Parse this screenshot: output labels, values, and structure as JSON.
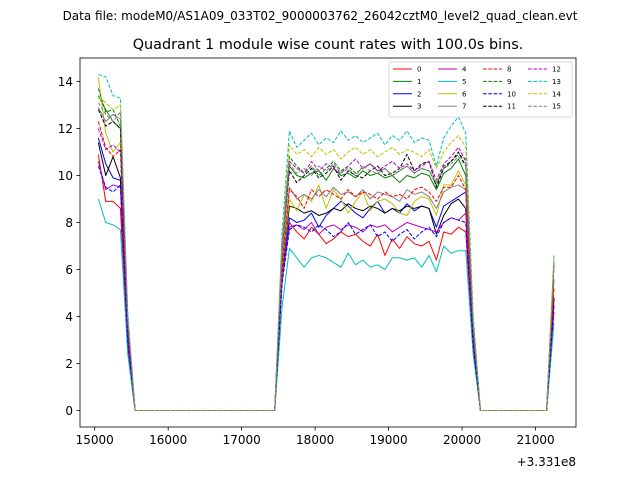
{
  "figure": {
    "suptitle": "Data file: modeM0/AS1A09_033T02_9000003762_26042cztM0_level2_quad_clean.evt"
  },
  "chart_data": {
    "type": "line",
    "title": "Quadrant 1 module wise count rates with 100.0s bins.",
    "xlabel": "",
    "ylabel": "",
    "x_offset_label": "+3.331e8",
    "xlim": [
      14800,
      21550
    ],
    "ylim": [
      -0.7,
      15.0
    ],
    "xticks": [
      15000,
      16000,
      17000,
      18000,
      19000,
      20000,
      21000
    ],
    "yticks": [
      0,
      2,
      4,
      6,
      8,
      10,
      12,
      14
    ],
    "grid": false,
    "legend_position": "top-right",
    "legend_columns": 4,
    "x": [
      15050,
      15150,
      15250,
      15350,
      15450,
      15550,
      15650,
      15750,
      15850,
      15950,
      16050,
      16150,
      16250,
      16350,
      16450,
      16550,
      16650,
      16750,
      16850,
      16950,
      17050,
      17150,
      17250,
      17350,
      17450,
      17550,
      17650,
      17750,
      17850,
      17950,
      18050,
      18150,
      18250,
      18350,
      18450,
      18550,
      18650,
      18750,
      18850,
      18950,
      19050,
      19150,
      19250,
      19350,
      19450,
      19550,
      19650,
      19750,
      19850,
      19950,
      20050,
      20150,
      20250,
      20350,
      20450,
      20550,
      20650,
      20750,
      20850,
      20950,
      21050,
      21150,
      21250
    ],
    "series": [
      {
        "name": "0",
        "color": "#ff0000",
        "dash": "solid",
        "values": [
          10.9,
          8.9,
          8.9,
          8.6,
          2.6,
          0,
          0,
          0,
          0,
          0,
          0,
          0,
          0,
          0,
          0,
          0,
          0,
          0,
          0,
          0,
          0,
          0,
          0,
          0,
          0,
          5.7,
          8.0,
          7.6,
          7.3,
          7.8,
          7.5,
          7.1,
          7.3,
          7.6,
          7.4,
          7.5,
          7.2,
          7.0,
          7.5,
          6.6,
          7.3,
          6.9,
          7.4,
          7.1,
          7.0,
          7.2,
          6.4,
          7.6,
          7.5,
          7.8,
          7.6,
          2.7,
          0,
          0,
          0,
          0,
          0,
          0,
          0,
          0,
          0,
          0,
          4.2
        ]
      },
      {
        "name": "1",
        "color": "#008000",
        "dash": "solid",
        "values": [
          13.4,
          12.8,
          12.3,
          12.0,
          3.8,
          0,
          0,
          0,
          0,
          0,
          0,
          0,
          0,
          0,
          0,
          0,
          0,
          0,
          0,
          0,
          0,
          0,
          0,
          0,
          0,
          6.8,
          10.4,
          10.0,
          9.9,
          10.1,
          10.2,
          9.8,
          10.3,
          10.0,
          10.1,
          9.9,
          10.2,
          10.0,
          10.1,
          9.9,
          10.0,
          9.7,
          10.0,
          9.9,
          10.1,
          10.0,
          9.4,
          10.1,
          10.3,
          10.7,
          10.0,
          3.6,
          0,
          0,
          0,
          0,
          0,
          0,
          0,
          0,
          0,
          0,
          6.3
        ]
      },
      {
        "name": "2",
        "color": "#0000ff",
        "dash": "solid",
        "values": [
          11.6,
          10.5,
          9.9,
          9.8,
          3.0,
          0,
          0,
          0,
          0,
          0,
          0,
          0,
          0,
          0,
          0,
          0,
          0,
          0,
          0,
          0,
          0,
          0,
          0,
          0,
          0,
          5.5,
          8.2,
          8.0,
          8.1,
          8.4,
          7.8,
          8.3,
          8.6,
          8.9,
          8.7,
          8.4,
          8.2,
          8.6,
          8.9,
          8.4,
          8.6,
          8.4,
          8.8,
          8.5,
          8.7,
          8.6,
          7.8,
          8.7,
          8.9,
          9.1,
          9.3,
          3.0,
          0,
          0,
          0,
          0,
          0,
          0,
          0,
          0,
          0,
          0,
          4.8
        ]
      },
      {
        "name": "3",
        "color": "#000000",
        "dash": "solid",
        "values": [
          11.4,
          10.0,
          10.8,
          9.9,
          3.1,
          0,
          0,
          0,
          0,
          0,
          0,
          0,
          0,
          0,
          0,
          0,
          0,
          0,
          0,
          0,
          0,
          0,
          0,
          0,
          0,
          5.9,
          8.7,
          8.6,
          8.4,
          8.5,
          8.3,
          8.4,
          8.6,
          8.5,
          8.8,
          8.6,
          8.5,
          8.7,
          8.6,
          8.4,
          8.6,
          8.5,
          8.7,
          8.6,
          8.7,
          8.6,
          7.5,
          8.3,
          8.8,
          9.0,
          8.6,
          3.0,
          0,
          0,
          0,
          0,
          0,
          0,
          0,
          0,
          0,
          0,
          4.8
        ]
      },
      {
        "name": "4",
        "color": "#bf00bf",
        "dash": "solid",
        "values": [
          10.6,
          9.4,
          9.6,
          9.5,
          2.9,
          0,
          0,
          0,
          0,
          0,
          0,
          0,
          0,
          0,
          0,
          0,
          0,
          0,
          0,
          0,
          0,
          0,
          0,
          0,
          0,
          5.6,
          7.8,
          7.9,
          7.7,
          8.0,
          7.5,
          7.8,
          7.9,
          7.7,
          7.9,
          7.8,
          7.6,
          7.9,
          7.8,
          7.9,
          7.6,
          7.8,
          8.0,
          7.9,
          7.8,
          7.7,
          7.6,
          8.0,
          8.2,
          8.1,
          8.4,
          2.9,
          0,
          0,
          0,
          0,
          0,
          0,
          0,
          0,
          0,
          0,
          4.5
        ]
      },
      {
        "name": "5",
        "color": "#00bfbf",
        "dash": "solid",
        "values": [
          9.0,
          8.0,
          7.9,
          7.7,
          2.4,
          0,
          0,
          0,
          0,
          0,
          0,
          0,
          0,
          0,
          0,
          0,
          0,
          0,
          0,
          0,
          0,
          0,
          0,
          0,
          0,
          4.4,
          6.9,
          6.5,
          6.1,
          6.5,
          6.6,
          6.5,
          6.3,
          6.1,
          6.7,
          6.2,
          6.4,
          6.1,
          6.2,
          6.0,
          6.5,
          6.5,
          6.4,
          6.5,
          6.1,
          6.6,
          5.9,
          7.0,
          6.7,
          6.8,
          6.8,
          2.4,
          0,
          0,
          0,
          0,
          0,
          0,
          0,
          0,
          0,
          0,
          3.7
        ]
      },
      {
        "name": "6",
        "color": "#bfbf00",
        "dash": "solid",
        "values": [
          14.2,
          11.8,
          11.0,
          11.4,
          3.6,
          0,
          0,
          0,
          0,
          0,
          0,
          0,
          0,
          0,
          0,
          0,
          0,
          0,
          0,
          0,
          0,
          0,
          0,
          0,
          0,
          6.0,
          9.0,
          8.5,
          9.2,
          8.9,
          9.6,
          8.6,
          9.4,
          9.0,
          8.4,
          8.9,
          9.3,
          8.5,
          8.9,
          9.0,
          8.8,
          8.4,
          8.3,
          8.9,
          9.1,
          9.0,
          8.3,
          9.6,
          9.6,
          10.2,
          9.6,
          3.4,
          0,
          0,
          0,
          0,
          0,
          0,
          0,
          0,
          0,
          0,
          5.6
        ]
      },
      {
        "name": "7",
        "color": "#808080",
        "dash": "solid",
        "values": [
          12.9,
          12.3,
          12.6,
          12.4,
          3.7,
          0,
          0,
          0,
          0,
          0,
          0,
          0,
          0,
          0,
          0,
          0,
          0,
          0,
          0,
          0,
          0,
          0,
          0,
          0,
          0,
          6.3,
          9.5,
          9.0,
          9.2,
          9.0,
          9.4,
          9.1,
          9.5,
          9.2,
          9.3,
          9.1,
          9.4,
          9.0,
          9.3,
          9.2,
          9.1,
          8.9,
          9.4,
          9.2,
          9.3,
          9.1,
          8.6,
          9.3,
          9.5,
          9.6,
          9.4,
          3.3,
          0,
          0,
          0,
          0,
          0,
          0,
          0,
          0,
          0,
          0,
          5.6
        ]
      },
      {
        "name": "8",
        "color": "#ff0000",
        "dash": "dashed",
        "values": [
          12.3,
          11.2,
          10.8,
          11.1,
          3.4,
          0,
          0,
          0,
          0,
          0,
          0,
          0,
          0,
          0,
          0,
          0,
          0,
          0,
          0,
          0,
          0,
          0,
          0,
          0,
          0,
          6.0,
          9.4,
          9.1,
          8.6,
          9.4,
          9.1,
          9.4,
          9.2,
          9.0,
          9.4,
          9.1,
          9.3,
          9.2,
          9.0,
          9.3,
          9.1,
          9.2,
          9.0,
          9.4,
          9.5,
          9.3,
          8.9,
          9.5,
          9.5,
          10.0,
          9.4,
          3.3,
          0,
          0,
          0,
          0,
          0,
          0,
          0,
          0,
          0,
          0,
          5.2
        ]
      },
      {
        "name": "9",
        "color": "#008000",
        "dash": "dashed",
        "values": [
          13.7,
          12.7,
          12.8,
          12.1,
          3.8,
          0,
          0,
          0,
          0,
          0,
          0,
          0,
          0,
          0,
          0,
          0,
          0,
          0,
          0,
          0,
          0,
          0,
          0,
          0,
          0,
          7.1,
          10.8,
          10.4,
          10.1,
          10.4,
          10.0,
          10.3,
          10.6,
          10.2,
          10.4,
          10.1,
          10.3,
          10.5,
          10.2,
          10.3,
          10.0,
          10.2,
          10.4,
          10.1,
          10.3,
          10.2,
          9.6,
          10.4,
          10.6,
          10.9,
          10.7,
          3.7,
          0,
          0,
          0,
          0,
          0,
          0,
          0,
          0,
          0,
          0,
          6.4
        ]
      },
      {
        "name": "10",
        "color": "#0000ff",
        "dash": "dashed",
        "values": [
          10.4,
          9.5,
          9.3,
          9.6,
          2.9,
          0,
          0,
          0,
          0,
          0,
          0,
          0,
          0,
          0,
          0,
          0,
          0,
          0,
          0,
          0,
          0,
          0,
          0,
          0,
          0,
          5.4,
          7.7,
          7.9,
          7.8,
          7.6,
          7.9,
          7.7,
          7.4,
          7.6,
          8.0,
          7.5,
          7.7,
          7.9,
          7.4,
          7.6,
          7.2,
          7.5,
          7.7,
          7.3,
          7.6,
          7.8,
          7.4,
          8.0,
          8.2,
          8.1,
          8.0,
          2.8,
          0,
          0,
          0,
          0,
          0,
          0,
          0,
          0,
          0,
          0,
          4.5
        ]
      },
      {
        "name": "11",
        "color": "#000000",
        "dash": "dashed",
        "values": [
          12.8,
          12.1,
          12.3,
          12.0,
          3.6,
          0,
          0,
          0,
          0,
          0,
          0,
          0,
          0,
          0,
          0,
          0,
          0,
          0,
          0,
          0,
          0,
          0,
          0,
          0,
          0,
          6.8,
          10.2,
          9.7,
          10.0,
          10.3,
          9.9,
          10.1,
          10.4,
          9.8,
          10.2,
          10.0,
          9.9,
          10.2,
          10.4,
          10.0,
          10.1,
          10.3,
          10.9,
          10.2,
          10.5,
          10.6,
          9.5,
          10.3,
          10.6,
          11.0,
          10.4,
          3.6,
          0,
          0,
          0,
          0,
          0,
          0,
          0,
          0,
          0,
          0,
          6.2
        ]
      },
      {
        "name": "12",
        "color": "#bf00bf",
        "dash": "dashed",
        "values": [
          12.0,
          11.1,
          11.3,
          11.0,
          3.5,
          0,
          0,
          0,
          0,
          0,
          0,
          0,
          0,
          0,
          0,
          0,
          0,
          0,
          0,
          0,
          0,
          0,
          0,
          0,
          0,
          6.8,
          10.6,
          10.3,
          10.1,
          10.6,
          10.2,
          10.5,
          10.3,
          10.1,
          10.4,
          10.7,
          10.3,
          10.5,
          10.2,
          10.4,
          10.6,
          10.3,
          10.5,
          10.2,
          10.4,
          10.6,
          9.8,
          10.5,
          10.8,
          11.2,
          10.6,
          3.7,
          0,
          0,
          0,
          0,
          0,
          0,
          0,
          0,
          0,
          0,
          6.3
        ]
      },
      {
        "name": "13",
        "color": "#00bfbf",
        "dash": "dashed",
        "values": [
          14.3,
          14.2,
          13.4,
          13.3,
          4.2,
          0,
          0,
          0,
          0,
          0,
          0,
          0,
          0,
          0,
          0,
          0,
          0,
          0,
          0,
          0,
          0,
          0,
          0,
          0,
          0,
          7.6,
          11.9,
          11.2,
          11.5,
          11.8,
          11.3,
          11.6,
          11.4,
          11.9,
          11.5,
          11.7,
          11.4,
          11.6,
          11.8,
          11.3,
          11.7,
          11.5,
          11.9,
          11.4,
          11.6,
          11.5,
          10.4,
          11.6,
          12.1,
          12.5,
          11.8,
          4.1,
          0,
          0,
          0,
          0,
          0,
          0,
          0,
          0,
          0,
          0,
          6.6
        ]
      },
      {
        "name": "14",
        "color": "#bfbf00",
        "dash": "dashed",
        "values": [
          13.3,
          13.1,
          12.8,
          13.0,
          4.0,
          0,
          0,
          0,
          0,
          0,
          0,
          0,
          0,
          0,
          0,
          0,
          0,
          0,
          0,
          0,
          0,
          0,
          0,
          0,
          0,
          7.2,
          11.3,
          10.9,
          11.1,
          10.8,
          11.2,
          10.9,
          11.1,
          10.7,
          11.0,
          11.2,
          10.9,
          11.1,
          10.8,
          11.0,
          11.2,
          10.9,
          11.1,
          11.0,
          10.8,
          11.1,
          10.3,
          11.0,
          11.4,
          11.7,
          11.2,
          3.9,
          0,
          0,
          0,
          0,
          0,
          0,
          0,
          0,
          0,
          0,
          6.5
        ]
      },
      {
        "name": "15",
        "color": "#808080",
        "dash": "dashed",
        "values": [
          13.1,
          12.6,
          12.3,
          12.7,
          3.9,
          0,
          0,
          0,
          0,
          0,
          0,
          0,
          0,
          0,
          0,
          0,
          0,
          0,
          0,
          0,
          0,
          0,
          0,
          0,
          0,
          6.9,
          10.5,
          10.1,
          10.3,
          10.0,
          10.4,
          10.2,
          10.5,
          10.1,
          10.3,
          10.0,
          10.4,
          10.2,
          10.1,
          10.3,
          10.0,
          10.2,
          10.4,
          10.1,
          10.3,
          10.2,
          9.7,
          10.3,
          10.5,
          10.8,
          10.4,
          3.7,
          0,
          0,
          0,
          0,
          0,
          0,
          0,
          0,
          0,
          0,
          6.2
        ]
      }
    ]
  }
}
